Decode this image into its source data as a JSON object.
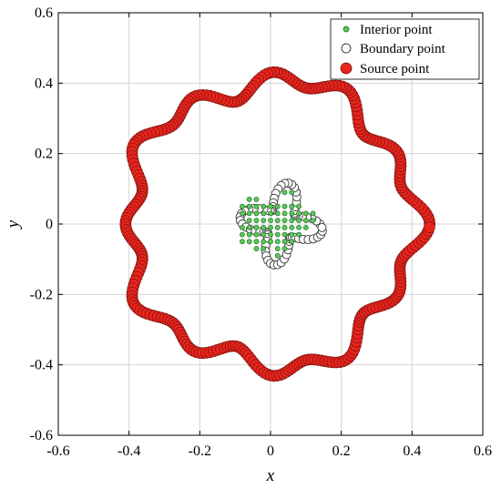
{
  "chart_data": {
    "type": "scatter",
    "title": "",
    "xlabel": "x",
    "ylabel": "y",
    "xlim": [
      -0.6,
      0.6
    ],
    "ylim": [
      -0.6,
      0.6
    ],
    "xticks": [
      -0.6,
      -0.4,
      -0.2,
      0,
      0.2,
      0.4,
      0.6
    ],
    "yticks": [
      -0.6,
      -0.4,
      -0.2,
      0,
      0.2,
      0.4,
      0.6
    ],
    "xtick_labels": [
      "-0.6",
      "-0.4",
      "-0.2",
      "0",
      "0.2",
      "0.4",
      "0.6"
    ],
    "ytick_labels": [
      "-0.6",
      "-0.4",
      "-0.2",
      "0",
      "0.2",
      "0.4",
      "0.6"
    ],
    "grid": true,
    "legend_position": "top-right",
    "series": [
      {
        "name": "Interior point",
        "marker": "small filled circle",
        "color": "#57c957",
        "edge_color": "#1e5e1e",
        "points": [
          [
            -0.06,
            0.07
          ],
          [
            -0.04,
            0.07
          ],
          [
            0.04,
            0.09
          ],
          [
            0.06,
            0.09
          ],
          [
            -0.08,
            0.05
          ],
          [
            -0.06,
            0.05
          ],
          [
            -0.04,
            0.05
          ],
          [
            -0.02,
            0.05
          ],
          [
            0.0,
            0.05
          ],
          [
            0.02,
            0.05
          ],
          [
            0.04,
            0.05
          ],
          [
            0.06,
            0.05
          ],
          [
            0.08,
            0.05
          ],
          [
            -0.08,
            0.03
          ],
          [
            -0.06,
            0.03
          ],
          [
            -0.04,
            0.03
          ],
          [
            -0.02,
            0.03
          ],
          [
            0.0,
            0.03
          ],
          [
            0.02,
            0.03
          ],
          [
            0.04,
            0.03
          ],
          [
            0.06,
            0.03
          ],
          [
            0.08,
            0.03
          ],
          [
            0.1,
            0.03
          ],
          [
            0.12,
            0.03
          ],
          [
            -0.06,
            0.01
          ],
          [
            -0.04,
            0.01
          ],
          [
            -0.02,
            0.01
          ],
          [
            0.0,
            0.01
          ],
          [
            0.02,
            0.01
          ],
          [
            0.04,
            0.01
          ],
          [
            0.06,
            0.01
          ],
          [
            0.08,
            0.01
          ],
          [
            0.1,
            0.01
          ],
          [
            0.12,
            0.01
          ],
          [
            -0.08,
            -0.01
          ],
          [
            -0.06,
            -0.01
          ],
          [
            -0.04,
            -0.01
          ],
          [
            -0.02,
            -0.01
          ],
          [
            0.0,
            -0.01
          ],
          [
            0.02,
            -0.01
          ],
          [
            0.04,
            -0.01
          ],
          [
            0.06,
            -0.01
          ],
          [
            0.08,
            -0.01
          ],
          [
            0.1,
            -0.01
          ],
          [
            -0.08,
            -0.03
          ],
          [
            -0.06,
            -0.03
          ],
          [
            -0.04,
            -0.03
          ],
          [
            -0.02,
            -0.03
          ],
          [
            0.0,
            -0.03
          ],
          [
            0.02,
            -0.03
          ],
          [
            0.04,
            -0.03
          ],
          [
            0.06,
            -0.03
          ],
          [
            0.08,
            -0.03
          ],
          [
            -0.08,
            -0.05
          ],
          [
            -0.06,
            -0.05
          ],
          [
            -0.04,
            -0.05
          ],
          [
            -0.02,
            -0.05
          ],
          [
            0.0,
            -0.05
          ],
          [
            0.02,
            -0.05
          ],
          [
            0.04,
            -0.05
          ],
          [
            0.06,
            -0.05
          ],
          [
            -0.04,
            -0.07
          ],
          [
            -0.02,
            -0.07
          ],
          [
            0.02,
            -0.07
          ],
          [
            0.04,
            -0.07
          ],
          [
            0.02,
            -0.09
          ]
        ]
      },
      {
        "name": "Boundary point",
        "marker": "open circle",
        "color": "#ffffff",
        "edge_color": "#333333",
        "curve": "center (0.03, 0.0), radius 0.082 + 0.036·cos(4θ + 0.7), 72 points"
      },
      {
        "name": "Source point",
        "marker": "large filled circle",
        "color": "#e8241d",
        "edge_color": "#7a1410",
        "curve": "center (0.0, 0.0), radius 0.405 + 0.025·cos(12θ) + 0.02·cos(5θ), 300 points"
      }
    ]
  }
}
